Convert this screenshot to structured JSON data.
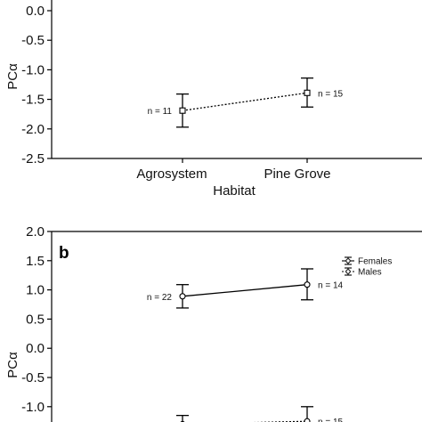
{
  "chart_data": [
    {
      "type": "line",
      "panel_label": "",
      "ylabel": "PCα",
      "xlabel": "Habitat",
      "categories": [
        "Agrosystem",
        "Pine Grove"
      ],
      "yticks": [
        "0.0",
        "-0.5",
        "-1.0",
        "-1.5",
        "-2.0",
        "-2.5"
      ],
      "yticks_values": [
        0.0,
        -0.5,
        -1.0,
        -1.5,
        -2.0,
        -2.5
      ],
      "ylim": [
        -2.5,
        0.0
      ],
      "series": [
        {
          "marker": "square",
          "line": "dotted",
          "values": [
            -1.69,
            -1.39
          ],
          "err_low": [
            -1.97,
            -1.63
          ],
          "err_high": [
            -1.41,
            -1.14
          ],
          "n_labels": [
            "n = 11",
            "n = 15"
          ]
        }
      ]
    },
    {
      "type": "line",
      "panel_label": "b",
      "ylabel": "PCα",
      "xlabel": "",
      "categories": [
        "Agrosystem",
        "Pine Grove"
      ],
      "yticks": [
        "2.0",
        "1.5",
        "1.0",
        "0.5",
        "0.0",
        "-0.5",
        "-1.0"
      ],
      "yticks_values": [
        2.0,
        1.5,
        1.0,
        0.5,
        0.0,
        -0.5,
        -1.0
      ],
      "ylim": [
        -1.2,
        2.0
      ],
      "legend": {
        "placement": "top-right",
        "entries": [
          "Females",
          "Males"
        ]
      },
      "series": [
        {
          "name": "Females",
          "marker": "circle",
          "line": "solid",
          "values": [
            0.89,
            1.09
          ],
          "err_low": [
            0.69,
            0.83
          ],
          "err_high": [
            1.09,
            1.36
          ],
          "n_labels": [
            "n = 22",
            "n = 14"
          ]
        },
        {
          "name": "Males",
          "marker": "circle",
          "line": "dotted",
          "values": [
            -1.3,
            -1.25
          ],
          "err_low": [
            -1.5,
            -1.5
          ],
          "err_high": [
            -1.15,
            -1.0
          ],
          "n_labels": [
            "",
            "n = 15"
          ]
        }
      ]
    }
  ]
}
